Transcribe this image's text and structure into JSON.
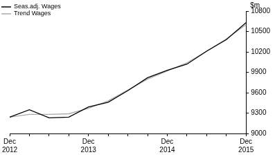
{
  "chart_data": {
    "type": "line",
    "categories": [
      "Dec 2012",
      null,
      null,
      null,
      "Dec 2013",
      null,
      null,
      null,
      "Dec 2014",
      null,
      null,
      null,
      "Dec 2015"
    ],
    "series": [
      {
        "name": "Seas.adj. Wages",
        "color": "#000000",
        "values": [
          9240,
          9350,
          9230,
          9240,
          9390,
          9460,
          9630,
          9820,
          9930,
          10020,
          10210,
          10380,
          10630
        ]
      },
      {
        "name": "Trend Wages",
        "color": "#aaaaaa",
        "values": [
          9240,
          9280,
          9280,
          9290,
          9370,
          9480,
          9640,
          9800,
          9920,
          10040,
          10210,
          10390,
          10600
        ]
      }
    ],
    "ylabel": "$m",
    "ylim": [
      9000,
      10800
    ],
    "yticks": [
      9000,
      9300,
      9600,
      9900,
      10200,
      10500,
      10800
    ],
    "grid": false,
    "legend": "upper left"
  }
}
